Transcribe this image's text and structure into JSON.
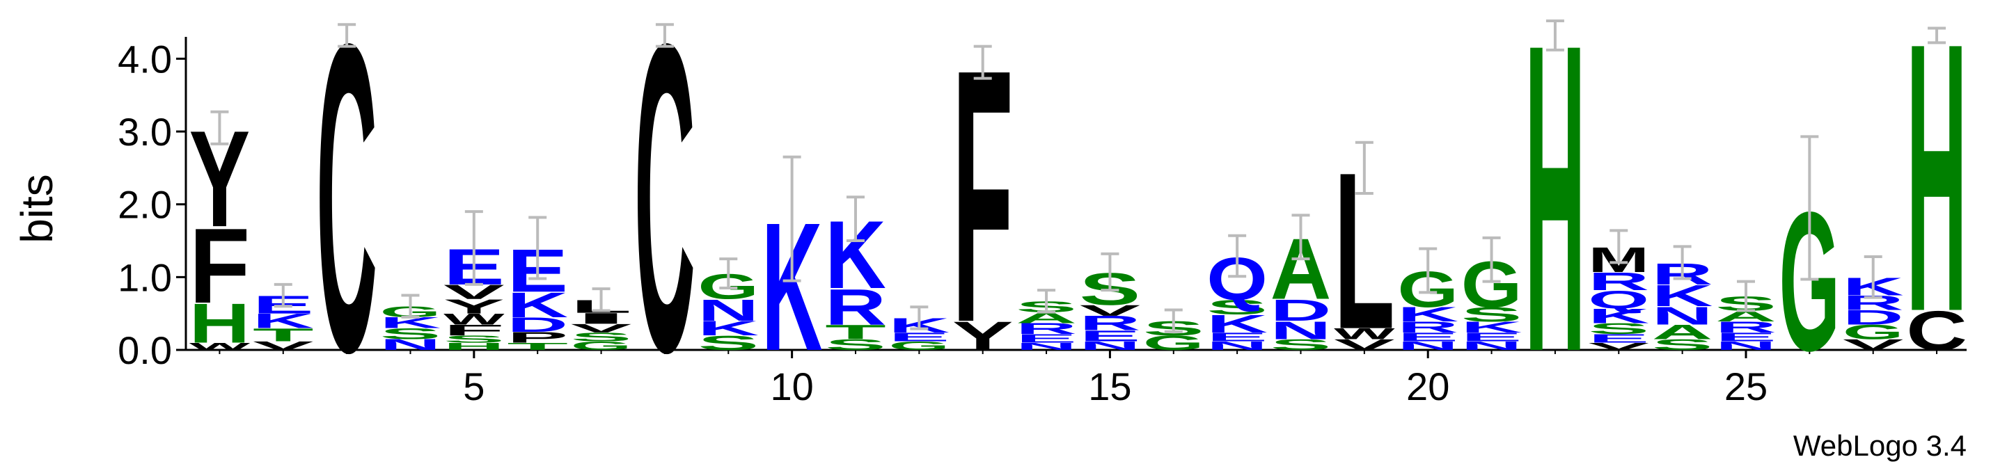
{
  "chart_data": {
    "type": "logo",
    "ylabel": "bits",
    "footer": "WebLogo 3.4",
    "xlim": [
      0.47,
      28.47
    ],
    "xticks": [
      5,
      10,
      15,
      20,
      25
    ],
    "ylim": [
      0,
      4.3
    ],
    "yticks": [
      {
        "value": 0,
        "label": "0.0"
      },
      {
        "value": 1,
        "label": "1.0"
      },
      {
        "value": 2,
        "label": "2.0"
      },
      {
        "value": 3,
        "label": "3.0"
      },
      {
        "value": 4,
        "label": "4.0"
      }
    ],
    "error_color": "#bbbbbb",
    "colors": {
      "A": "#008000",
      "C": "#000000",
      "D": "#0000ff",
      "E": "#0000ff",
      "F": "#000000",
      "G": "#008000",
      "H": "#008000",
      "I": "#000000",
      "K": "#0000ff",
      "L": "#000000",
      "M": "#000000",
      "N": "#0000ff",
      "P": "#000000",
      "Q": "#0000ff",
      "R": "#0000ff",
      "S": "#008000",
      "T": "#008000",
      "V": "#000000",
      "W": "#000000",
      "Y": "#000000"
    },
    "x": [
      1,
      2,
      3,
      4,
      5,
      6,
      7,
      8,
      9,
      10,
      11,
      12,
      13,
      14,
      15,
      16,
      17,
      18,
      19,
      20,
      21,
      22,
      23,
      24,
      25,
      26,
      27,
      28
    ],
    "columns": [
      {
        "letters": [
          "W",
          "H",
          "F",
          "Y"
        ],
        "bits": [
          0.1,
          0.55,
          1.05,
          1.35
        ],
        "error": 0.22
      },
      {
        "letters": [
          "V",
          "T",
          "K",
          "E"
        ],
        "bits": [
          0.12,
          0.18,
          0.2,
          0.25
        ],
        "error": 0.15
      },
      {
        "letters": [
          "C"
        ],
        "bits": [
          4.32
        ],
        "error": 0.15
      },
      {
        "letters": [
          "N",
          "S",
          "K",
          "G"
        ],
        "bits": [
          0.15,
          0.15,
          0.15,
          0.15
        ],
        "error": 0.15
      },
      {
        "letters": [
          "H",
          "S",
          "F",
          "W",
          "Y",
          "V",
          "E"
        ],
        "bits": [
          0.1,
          0.1,
          0.15,
          0.15,
          0.2,
          0.2,
          0.5
        ],
        "error": 0.5
      },
      {
        "letters": [
          "T",
          "P",
          "D",
          "K",
          "E"
        ],
        "bits": [
          0.1,
          0.15,
          0.2,
          0.35,
          0.6
        ],
        "error": 0.42
      },
      {
        "letters": [
          "G",
          "S",
          "V",
          "I",
          "L"
        ],
        "bits": [
          0.12,
          0.12,
          0.12,
          0.15,
          0.18
        ],
        "error": 0.15
      },
      {
        "letters": [
          "C"
        ],
        "bits": [
          4.32
        ],
        "error": 0.15
      },
      {
        "letters": [
          "S",
          "K",
          "N",
          "G"
        ],
        "bits": [
          0.2,
          0.2,
          0.3,
          0.35
        ],
        "error": 0.2
      },
      {
        "letters": [
          "K"
        ],
        "bits": [
          1.8
        ],
        "error": 0.85
      },
      {
        "letters": [
          "S",
          "T",
          "R",
          "K"
        ],
        "bits": [
          0.15,
          0.2,
          0.5,
          0.95
        ],
        "error": 0.3
      },
      {
        "letters": [
          "G",
          "E",
          "K"
        ],
        "bits": [
          0.12,
          0.12,
          0.2
        ],
        "error": 0.15
      },
      {
        "letters": [
          "Y",
          "F"
        ],
        "bits": [
          0.4,
          3.55
        ],
        "error": 0.22
      },
      {
        "letters": [
          "N",
          "E",
          "R",
          "A",
          "S"
        ],
        "bits": [
          0.1,
          0.12,
          0.15,
          0.15,
          0.15
        ],
        "error": 0.15
      },
      {
        "letters": [
          "N",
          "E",
          "R",
          "V",
          "S"
        ],
        "bits": [
          0.12,
          0.15,
          0.2,
          0.15,
          0.45
        ],
        "error": 0.25
      },
      {
        "letters": [
          "G",
          "S"
        ],
        "bits": [
          0.2,
          0.2
        ],
        "error": 0.15
      },
      {
        "letters": [
          "N",
          "E",
          "K",
          "S",
          "Q"
        ],
        "bits": [
          0.12,
          0.12,
          0.25,
          0.2,
          0.6
        ],
        "error": 0.28
      },
      {
        "letters": [
          "S",
          "N",
          "D",
          "A"
        ],
        "bits": [
          0.15,
          0.25,
          0.3,
          0.85
        ],
        "error": 0.3
      },
      {
        "letters": [
          "V",
          "W",
          "L"
        ],
        "bits": [
          0.15,
          0.15,
          2.2
        ],
        "error": 0.35
      },
      {
        "letters": [
          "N",
          "E",
          "R",
          "K",
          "G"
        ],
        "bits": [
          0.12,
          0.12,
          0.15,
          0.2,
          0.5
        ],
        "error": 0.3
      },
      {
        "letters": [
          "N",
          "E",
          "K",
          "S",
          "G"
        ],
        "bits": [
          0.12,
          0.12,
          0.15,
          0.2,
          0.65
        ],
        "error": 0.3
      },
      {
        "letters": [
          "H"
        ],
        "bits": [
          4.32
        ],
        "error": 0.2
      },
      {
        "letters": [
          "V",
          "E",
          "S",
          "K",
          "Q",
          "R",
          "M"
        ],
        "bits": [
          0.1,
          0.12,
          0.15,
          0.2,
          0.25,
          0.25,
          0.35
        ],
        "error": 0.22
      },
      {
        "letters": [
          "S",
          "A",
          "N",
          "K",
          "R"
        ],
        "bits": [
          0.15,
          0.2,
          0.25,
          0.3,
          0.3
        ],
        "error": 0.22
      },
      {
        "letters": [
          "N",
          "E",
          "R",
          "A",
          "S"
        ],
        "bits": [
          0.12,
          0.12,
          0.15,
          0.15,
          0.2
        ],
        "error": 0.2
      },
      {
        "letters": [
          "G"
        ],
        "bits": [
          1.95
        ],
        "error": 0.98
      },
      {
        "letters": [
          "V",
          "G",
          "D",
          "R",
          "K"
        ],
        "bits": [
          0.15,
          0.2,
          0.2,
          0.2,
          0.25
        ],
        "error": 0.28
      },
      {
        "letters": [
          "C",
          "H"
        ],
        "bits": [
          0.55,
          3.77
        ],
        "error": 0.1
      }
    ]
  }
}
